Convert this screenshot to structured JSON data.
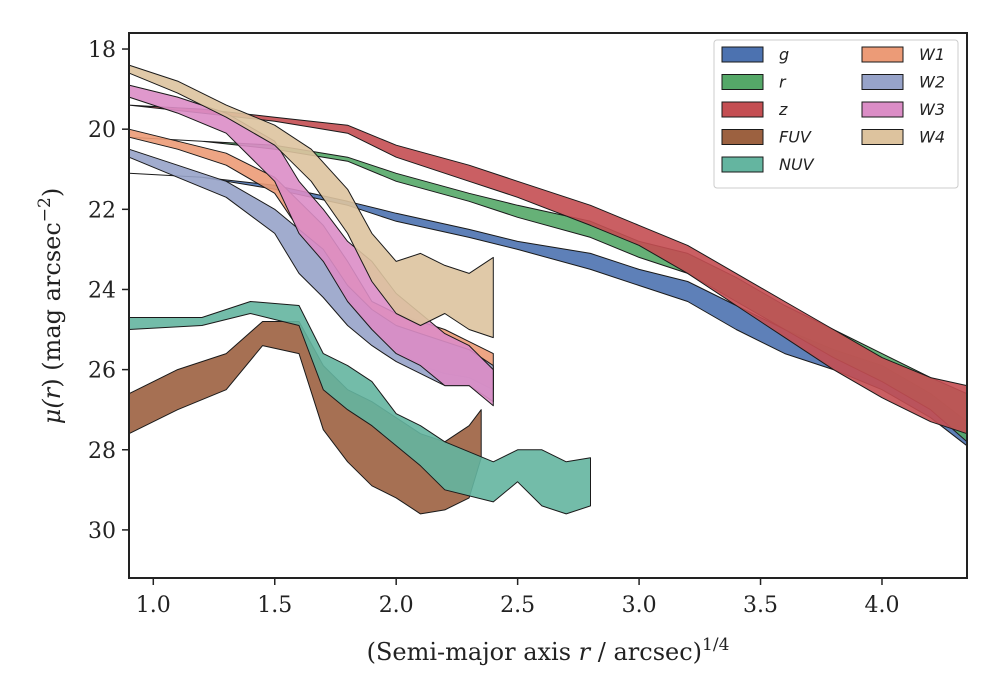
{
  "chart_data": {
    "type": "area",
    "title": "",
    "xlabel": "(Semi-major axis r / arcsec)",
    "xlabel_parts": {
      "pre": "(Semi-major axis ",
      "var": "r",
      "post": " / arcsec)",
      "sup": "1/4"
    },
    "ylabel": "μ(r) (mag arcsec⁻²)",
    "ylabel_parts": {
      "mu": "μ(",
      "var": "r",
      "mid": ") (mag arcsec",
      "sup": "−2",
      "post": ")"
    },
    "xlim": [
      0.9,
      4.35
    ],
    "ylim": [
      31.2,
      17.6
    ],
    "y_inverted": true,
    "xticks": [
      1.0,
      1.5,
      2.0,
      2.5,
      3.0,
      3.5,
      4.0
    ],
    "xtick_labels": [
      "1.0",
      "1.5",
      "2.0",
      "2.5",
      "3.0",
      "3.5",
      "4.0"
    ],
    "yticks": [
      18,
      20,
      22,
      24,
      26,
      28,
      30
    ],
    "ytick_labels": [
      "18",
      "20",
      "22",
      "24",
      "26",
      "28",
      "30"
    ],
    "grid": false,
    "legend_position": "top-right",
    "legend_columns": 2,
    "series": [
      {
        "name": "g",
        "color": "#4c72b0",
        "x": [
          0.9,
          1.2,
          1.5,
          1.8,
          2.0,
          2.3,
          2.5,
          2.8,
          3.0,
          3.2,
          3.4,
          3.6,
          3.8,
          4.0,
          4.2,
          4.35
        ],
        "y_bright": [
          21.1,
          21.2,
          21.4,
          21.8,
          22.1,
          22.5,
          22.8,
          23.1,
          23.5,
          23.8,
          24.4,
          25.0,
          25.5,
          25.9,
          26.6,
          27.3
        ],
        "y_faint": [
          21.1,
          21.2,
          21.5,
          21.9,
          22.3,
          22.7,
          23.0,
          23.5,
          23.9,
          24.3,
          25.0,
          25.6,
          26.0,
          26.5,
          27.2,
          27.9
        ]
      },
      {
        "name": "r",
        "color": "#55a868",
        "x": [
          0.9,
          1.2,
          1.5,
          1.8,
          2.0,
          2.3,
          2.5,
          2.8,
          3.0,
          3.2,
          3.4,
          3.6,
          3.8,
          4.0,
          4.2,
          4.35
        ],
        "y_bright": [
          20.2,
          20.3,
          20.4,
          20.7,
          21.1,
          21.6,
          21.9,
          22.3,
          22.8,
          23.1,
          23.7,
          24.4,
          25.0,
          25.6,
          26.2,
          26.6
        ],
        "y_faint": [
          20.2,
          20.3,
          20.5,
          20.8,
          21.3,
          21.8,
          22.2,
          22.7,
          23.2,
          23.6,
          24.3,
          25.0,
          25.7,
          26.3,
          27.0,
          27.8
        ]
      },
      {
        "name": "z",
        "color": "#c44e52",
        "x": [
          0.9,
          1.2,
          1.5,
          1.8,
          2.0,
          2.3,
          2.5,
          2.8,
          3.0,
          3.2,
          3.4,
          3.6,
          3.8,
          4.0,
          4.2,
          4.35
        ],
        "y_bright": [
          19.4,
          19.5,
          19.7,
          19.9,
          20.4,
          20.9,
          21.3,
          21.9,
          22.4,
          22.9,
          23.6,
          24.3,
          25.0,
          25.7,
          26.2,
          26.4
        ],
        "y_faint": [
          19.4,
          19.6,
          19.8,
          20.1,
          20.7,
          21.3,
          21.7,
          22.4,
          22.9,
          23.6,
          24.4,
          25.2,
          26.0,
          26.7,
          27.3,
          27.6
        ]
      },
      {
        "name": "FUV",
        "color": "#9c6140",
        "x": [
          0.9,
          1.1,
          1.3,
          1.45,
          1.6,
          1.7,
          1.8,
          1.9,
          2.0,
          2.1,
          2.2,
          2.3,
          2.35
        ],
        "y_bright": [
          26.6,
          26.0,
          25.6,
          24.8,
          24.8,
          25.9,
          26.5,
          26.8,
          27.2,
          27.6,
          27.8,
          27.4,
          27.0
        ],
        "y_faint": [
          27.6,
          27.0,
          26.5,
          25.4,
          25.6,
          27.5,
          28.3,
          28.9,
          29.2,
          29.6,
          29.5,
          29.2,
          28.2
        ]
      },
      {
        "name": "NUV",
        "color": "#64b5a0",
        "x": [
          0.9,
          1.2,
          1.4,
          1.6,
          1.7,
          1.8,
          1.9,
          2.0,
          2.1,
          2.2,
          2.4,
          2.5,
          2.6,
          2.7,
          2.8
        ],
        "y_bright": [
          24.7,
          24.7,
          24.3,
          24.4,
          25.6,
          25.9,
          26.3,
          27.1,
          27.4,
          27.8,
          28.3,
          28.0,
          28.0,
          28.3,
          28.2
        ],
        "y_faint": [
          25.0,
          24.9,
          24.6,
          24.9,
          26.5,
          27.0,
          27.4,
          27.9,
          28.4,
          29.0,
          29.3,
          28.8,
          29.4,
          29.6,
          29.4
        ]
      },
      {
        "name": "W1",
        "color": "#ec9b77",
        "x": [
          0.9,
          1.1,
          1.3,
          1.5,
          1.6,
          1.7,
          1.8,
          1.9,
          2.0,
          2.1,
          2.2,
          2.3,
          2.4
        ],
        "y_bright": [
          20.0,
          20.3,
          20.6,
          21.2,
          21.8,
          22.4,
          23.3,
          24.3,
          24.6,
          24.8,
          25.0,
          25.3,
          25.6
        ],
        "y_faint": [
          20.2,
          20.5,
          20.9,
          21.6,
          22.5,
          23.3,
          24.2,
          25.0,
          25.5,
          25.9,
          26.1,
          26.2,
          26.5
        ]
      },
      {
        "name": "W2",
        "color": "#97a3c9",
        "x": [
          0.9,
          1.1,
          1.3,
          1.5,
          1.6,
          1.7,
          1.8,
          1.9,
          2.0,
          2.1,
          2.2,
          2.3,
          2.4
        ],
        "y_bright": [
          20.5,
          20.9,
          21.3,
          22.0,
          22.5,
          23.0,
          23.9,
          24.5,
          24.9,
          25.1,
          25.3,
          25.5,
          25.9
        ],
        "y_faint": [
          20.7,
          21.2,
          21.7,
          22.6,
          23.6,
          24.2,
          24.9,
          25.4,
          25.8,
          26.1,
          26.4,
          26.4,
          26.8
        ]
      },
      {
        "name": "W3",
        "color": "#db8dc6",
        "x": [
          0.9,
          1.1,
          1.3,
          1.5,
          1.6,
          1.7,
          1.8,
          1.9,
          2.0,
          2.1,
          2.2,
          2.3,
          2.4
        ],
        "y_bright": [
          18.9,
          19.2,
          19.6,
          20.3,
          21.3,
          22.0,
          22.8,
          23.3,
          24.1,
          24.6,
          25.1,
          25.4,
          26.0
        ],
        "y_faint": [
          19.2,
          19.6,
          20.1,
          21.3,
          22.6,
          23.3,
          24.3,
          25.0,
          25.6,
          25.9,
          26.4,
          26.4,
          26.9
        ]
      },
      {
        "name": "W4",
        "color": "#ddc39e",
        "x": [
          0.9,
          1.1,
          1.3,
          1.5,
          1.65,
          1.8,
          1.9,
          2.0,
          2.1,
          2.2,
          2.3,
          2.4
        ],
        "y_bright": [
          18.4,
          18.8,
          19.4,
          19.9,
          20.5,
          21.5,
          22.6,
          23.3,
          23.1,
          23.4,
          23.6,
          23.2
        ],
        "y_faint": [
          18.6,
          19.1,
          19.7,
          20.4,
          21.3,
          22.6,
          23.8,
          24.6,
          24.9,
          24.6,
          25.0,
          25.2
        ]
      }
    ]
  }
}
